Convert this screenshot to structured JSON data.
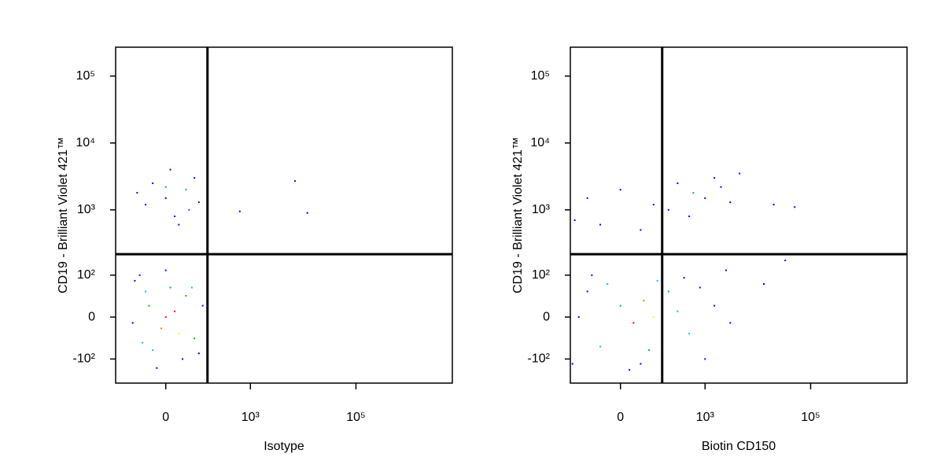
{
  "chart_data": [
    {
      "type": "scatter",
      "scale": "biexponential",
      "linear_width": 50,
      "xlabel": "Isotype",
      "ylabel": "CD19 - Brilliant Violet 421™",
      "xlim": [
        -220,
        6700000
      ],
      "ylim": [
        -240,
        270000
      ],
      "xticks": [
        0,
        {
          "value": 1000,
          "label": "10³"
        },
        {
          "value": 100000,
          "label": "10⁵"
        }
      ],
      "yticks": [
        {
          "value": -100,
          "label": "-10²"
        },
        0,
        {
          "value": 100,
          "label": "10²"
        },
        {
          "value": 1000,
          "label": "10³"
        },
        {
          "value": 10000,
          "label": "10⁴"
        },
        {
          "value": 100000,
          "label": "10⁵"
        }
      ],
      "gate_x": 150,
      "gate_y": 215,
      "x": [
        0,
        50,
        -50,
        20,
        80,
        -30,
        60,
        10,
        -80,
        100,
        30,
        0,
        630,
        7000,
        12000,
        0,
        20,
        -10,
        30,
        -40,
        50,
        -60,
        70,
        -90,
        100,
        0,
        -20,
        120,
        -100,
        40,
        -70,
        10,
        -30,
        80,
        -50
      ],
      "y": [
        1500,
        2000,
        1200,
        800,
        3000,
        2500,
        1000,
        4000,
        1800,
        1300,
        600,
        2200,
        950,
        2700,
        900,
        0,
        10,
        -20,
        -30,
        20,
        40,
        -50,
        60,
        80,
        -80,
        120,
        -140,
        20,
        -10,
        -100,
        100,
        60,
        -70,
        -40,
        50
      ],
      "colors": [
        "#0000ff",
        "#00a0ff",
        "#0000ff",
        "#0000ff",
        "#0000ff",
        "#0000ff",
        "#0060ff",
        "#0000ff",
        "#0000ff",
        "#0000ff",
        "#0000ff",
        "#00a0ff",
        "#0000ff",
        "#0000ff",
        "#0000ff",
        "#ff0000",
        "#ff0000",
        "#ff8000",
        "#ffff00",
        "#00c000",
        "#00c000",
        "#00c0ff",
        "#00c0ff",
        "#0000ff",
        "#0000ff",
        "#0000ff",
        "#0000ff",
        "#0000ff",
        "#0000ff",
        "#0000ff",
        "#0000ff",
        "#00c000",
        "#00c0ff",
        "#00c000",
        "#00c0ff"
      ]
    },
    {
      "type": "scatter",
      "scale": "biexponential",
      "linear_width": 50,
      "xlabel": "Biotin CD150",
      "ylabel": "CD19 - Brilliant Violet 421™",
      "xlim": [
        -220,
        6700000
      ],
      "ylim": [
        -240,
        270000
      ],
      "xticks": [
        0,
        {
          "value": 1000,
          "label": "10³"
        },
        {
          "value": 100000,
          "label": "10⁵"
        }
      ],
      "yticks": [
        {
          "value": -100,
          "label": "-10²"
        },
        0,
        {
          "value": 100,
          "label": "10²"
        },
        {
          "value": 1000,
          "label": "10³"
        },
        {
          "value": 10000,
          "label": "10⁴"
        },
        {
          "value": 100000,
          "label": "10⁵"
        }
      ],
      "gate_x": 150,
      "gate_y": 215,
      "x": [
        -150,
        -100,
        -50,
        0,
        30,
        60,
        100,
        150,
        200,
        300,
        500,
        800,
        1500,
        3000,
        -200,
        -80,
        20,
        400,
        1000,
        2500,
        80,
        -30,
        120,
        50,
        13000,
        33000,
        -100,
        0,
        100,
        300,
        600,
        1000,
        2000,
        1500,
        500,
        50,
        200,
        3000,
        -50,
        4500,
        20000,
        50000,
        -180
      ],
      "y": [
        0,
        50,
        -60,
        20,
        -10,
        30,
        0,
        -40,
        50,
        10,
        -30,
        60,
        20,
        -10,
        -120,
        100,
        -150,
        90,
        -100,
        120,
        -70,
        70,
        80,
        -120,
        70,
        172,
        1500,
        2000,
        1200,
        2500,
        1800,
        1500,
        2200,
        3000,
        800,
        500,
        1000,
        1300,
        600,
        3500,
        1200,
        1100,
        700
      ],
      "colors": [
        "#0000ff",
        "#0000ff",
        "#00c0ff",
        "#00c000",
        "#ff0000",
        "#ff8000",
        "#ffff00",
        "#00c000",
        "#00c000",
        "#00c0ff",
        "#00c0ff",
        "#0000ff",
        "#0000ff",
        "#0000ff",
        "#0000ff",
        "#0000ff",
        "#0000ff",
        "#0000ff",
        "#0000ff",
        "#0000ff",
        "#00c000",
        "#00c0ff",
        "#00c0ff",
        "#0000ff",
        "#0000ff",
        "#0000ff",
        "#0000ff",
        "#0000ff",
        "#0000ff",
        "#0000ff",
        "#00a0ff",
        "#0000ff",
        "#0000ff",
        "#0000ff",
        "#0000ff",
        "#0000ff",
        "#0000ff",
        "#0000ff",
        "#0000ff",
        "#0000ff",
        "#0000ff",
        "#0000ff",
        "#0000ff"
      ]
    }
  ]
}
